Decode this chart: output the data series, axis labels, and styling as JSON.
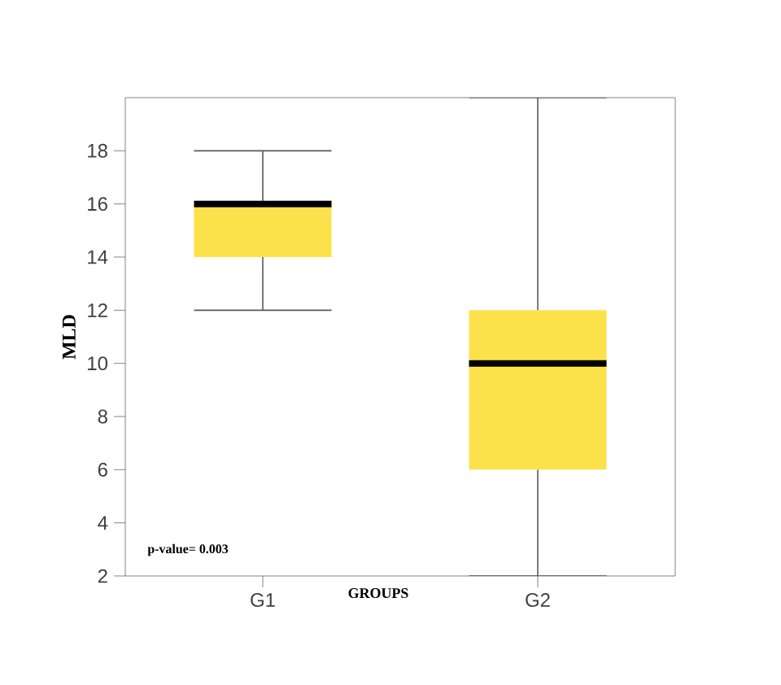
{
  "chart_data": {
    "type": "box",
    "categories": [
      "G1",
      "G2"
    ],
    "boxes": [
      {
        "low": 12,
        "q1": 14,
        "median": 16,
        "q3": 16,
        "high": 18
      },
      {
        "low": 2,
        "q1": 6,
        "median": 10,
        "q3": 12,
        "high": 20
      }
    ],
    "color": "#fce24a",
    "xlabel": "GROUPS",
    "ylabel": "MLD",
    "ylim": [
      2,
      20
    ],
    "yticks": [
      2,
      4,
      6,
      8,
      10,
      12,
      14,
      16,
      18
    ],
    "annotations": [
      "p-value= 0.003"
    ]
  }
}
